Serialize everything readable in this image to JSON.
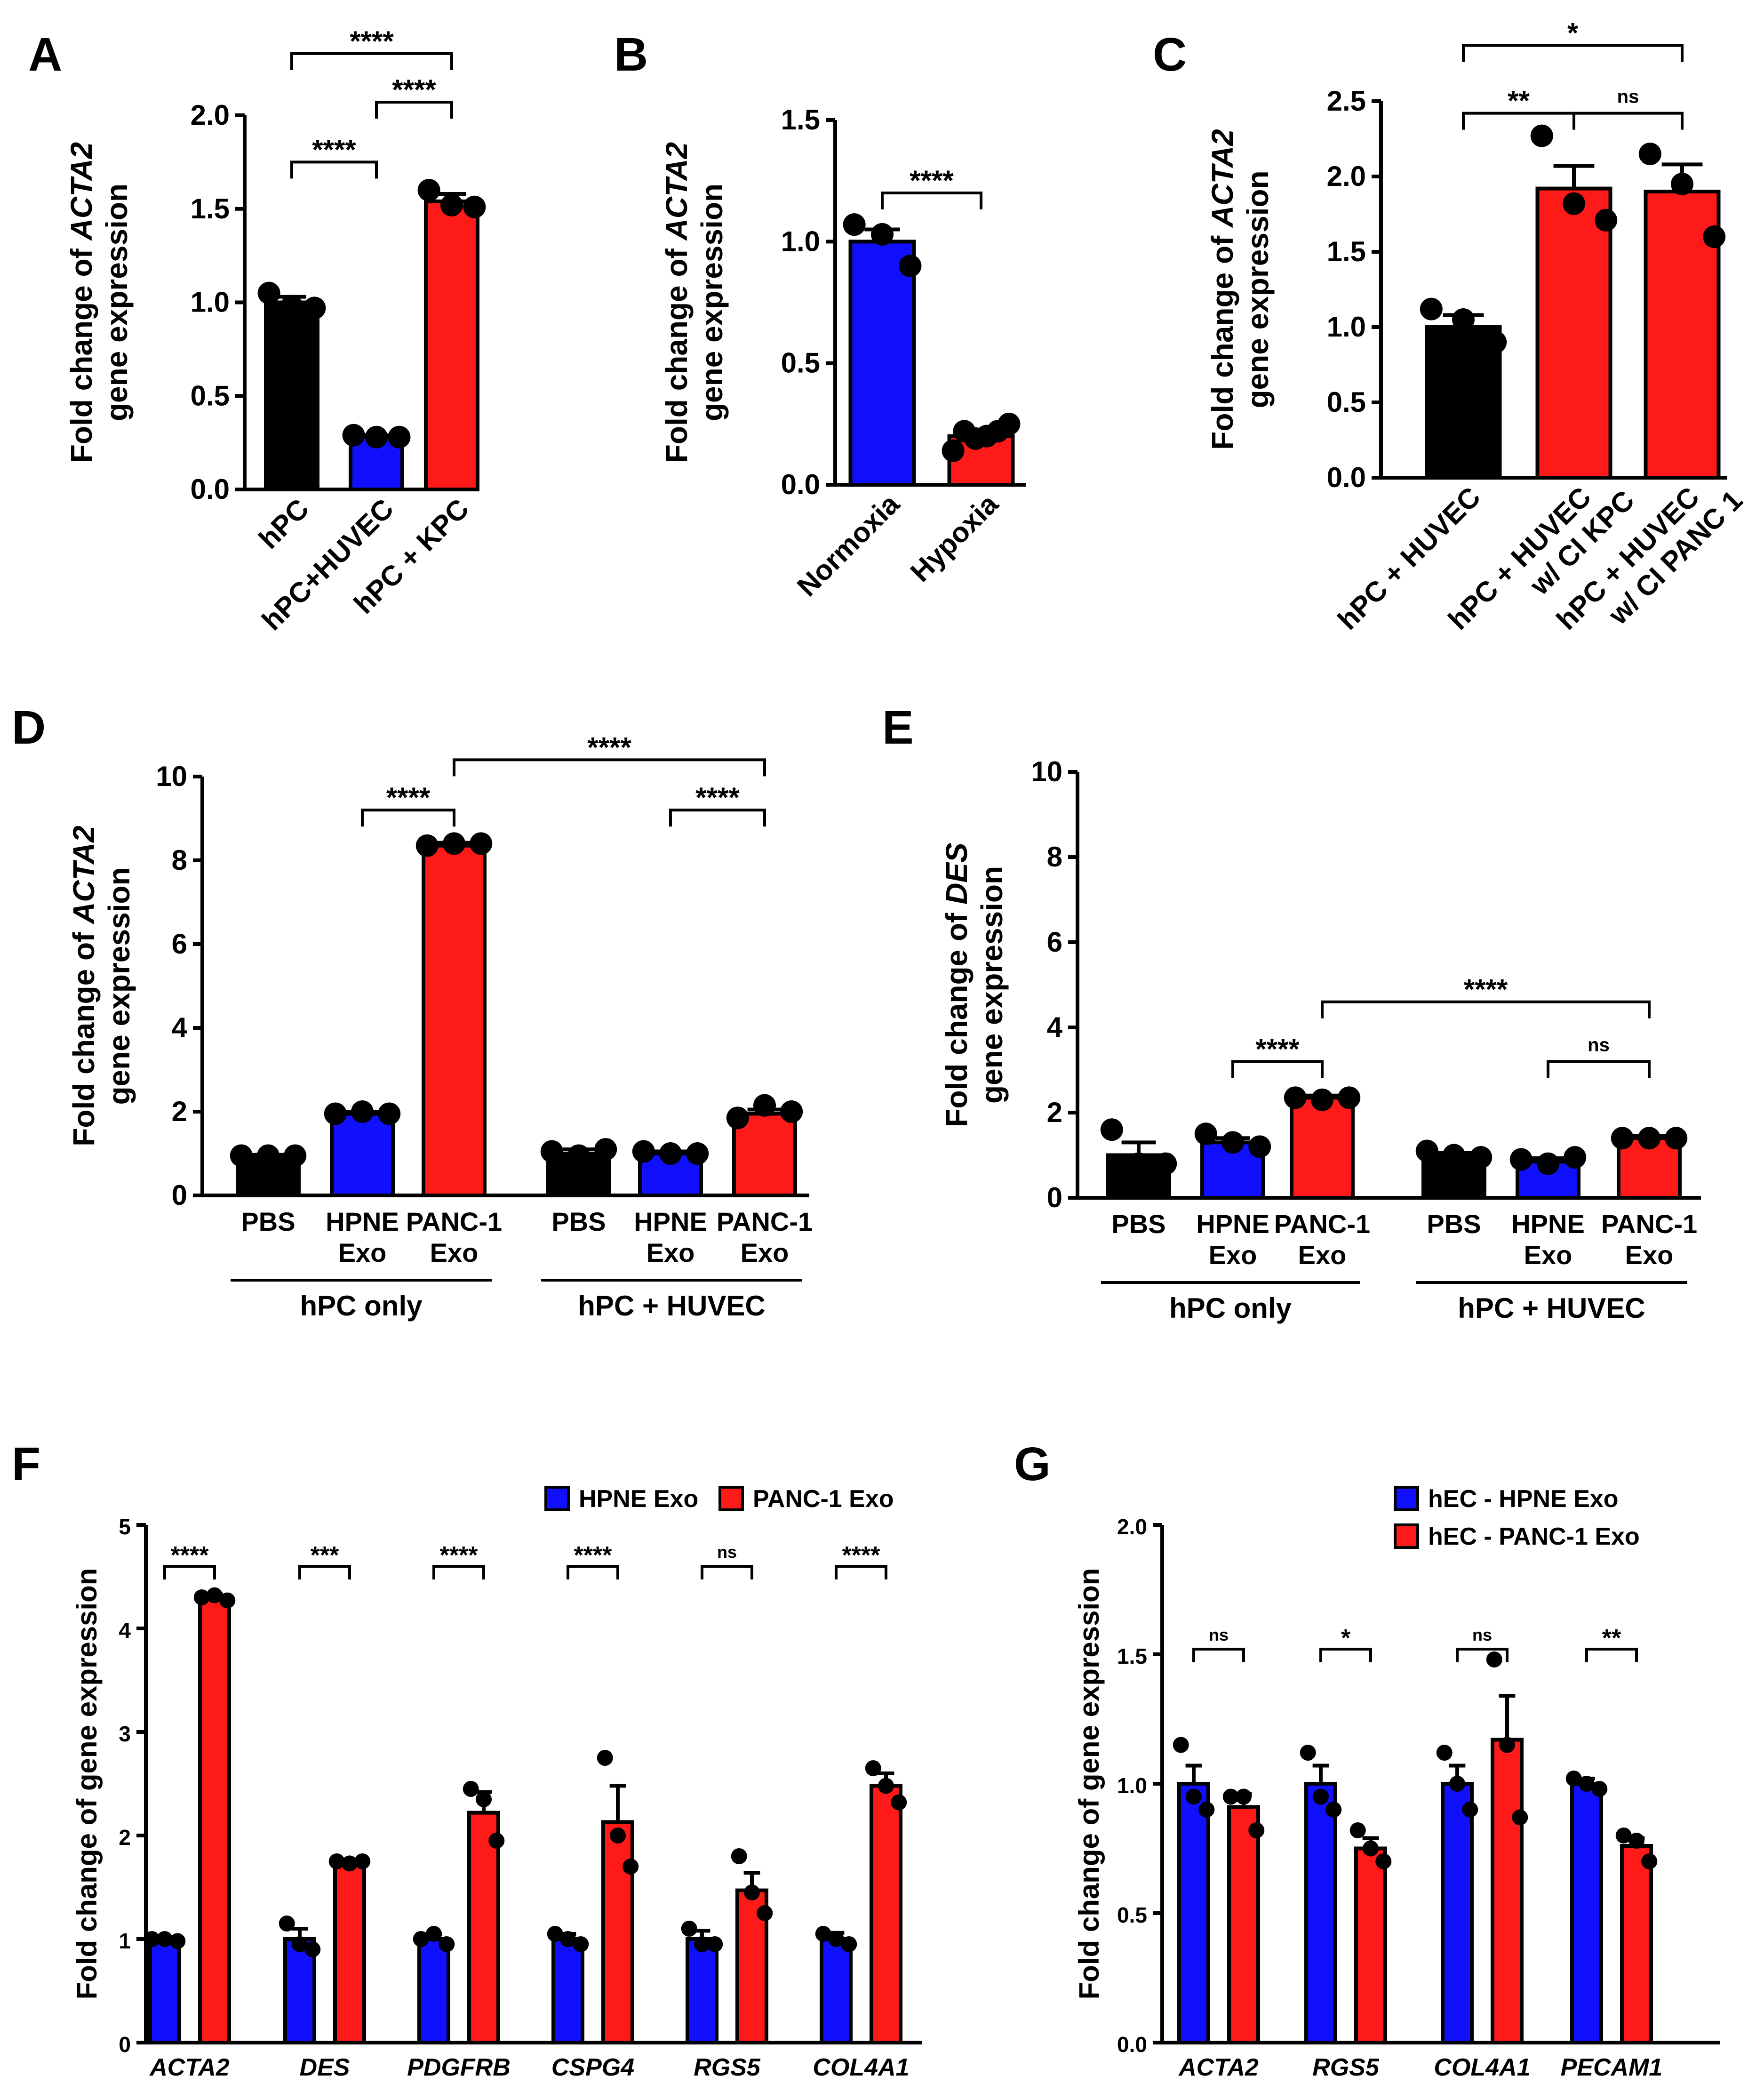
{
  "colors": {
    "black": "#000000",
    "blue": "#1010ff",
    "red": "#ff1a1a"
  },
  "chart_data": [
    {
      "id": "A",
      "panel_label": "A",
      "type": "bar",
      "ylabel_pre": "Fold change of ",
      "ylabel_gene": "ACTA2",
      "ylabel_line2": "gene expression",
      "yticks": [
        "0.0",
        "0.5",
        "1.0",
        "1.5",
        "2.0"
      ],
      "ylim": [
        0,
        2.0
      ],
      "categories": [
        "hPC",
        "hPC+HUVEC",
        "hPC + KPC"
      ],
      "values": [
        1.0,
        0.28,
        1.54
      ],
      "sem": [
        0.03,
        0.01,
        0.04
      ],
      "colors": [
        "black",
        "blue",
        "red"
      ],
      "points": [
        [
          1.05,
          0.98,
          0.97
        ],
        [
          0.29,
          0.28,
          0.28
        ],
        [
          1.6,
          1.52,
          1.51
        ]
      ],
      "brackets": [
        {
          "from": 0,
          "to": 1,
          "label": "****",
          "y": 1.75
        },
        {
          "from": 1,
          "to": 2,
          "label": "****",
          "y": 2.07
        },
        {
          "from": 0,
          "to": 2,
          "label": "****",
          "y": 2.33
        }
      ]
    },
    {
      "id": "B",
      "panel_label": "B",
      "type": "bar",
      "ylabel_pre": "Fold change  of ",
      "ylabel_gene": "ACTA2",
      "ylabel_line2": "gene expression",
      "yticks": [
        "0.0",
        "0.5",
        "1.0",
        "1.5"
      ],
      "ylim": [
        0,
        1.5
      ],
      "categories": [
        "Normoxia",
        "Hypoxia"
      ],
      "values": [
        1.0,
        0.2
      ],
      "sem": [
        0.05,
        0.02
      ],
      "colors": [
        "blue",
        "red"
      ],
      "points": [
        [
          1.07,
          1.03,
          0.9
        ],
        [
          0.14,
          0.22,
          0.19,
          0.2,
          0.22,
          0.25
        ]
      ],
      "brackets": [
        {
          "from": 0,
          "to": 1,
          "label": "****",
          "y": 1.2
        }
      ]
    },
    {
      "id": "C",
      "panel_label": "C",
      "type": "bar",
      "ylabel_pre": "Fold change  of ",
      "ylabel_gene": "ACTA2",
      "ylabel_line2": "gene expression",
      "yticks": [
        "0.0",
        "0.5",
        "1.0",
        "1.5",
        "2.0",
        "2.5"
      ],
      "ylim": [
        0,
        2.5
      ],
      "categories": [
        "hPC + HUVEC",
        "hPC + HUVEC\nw/ CI KPC",
        "hPC + HUVEC\nw/ CI PANC 1"
      ],
      "values": [
        1.0,
        1.92,
        1.9
      ],
      "sem": [
        0.08,
        0.15,
        0.18
      ],
      "colors": [
        "black",
        "red",
        "red"
      ],
      "points": [
        [
          1.12,
          1.05,
          0.9
        ],
        [
          2.27,
          1.82,
          1.71
        ],
        [
          2.15,
          1.95,
          1.6
        ]
      ],
      "brackets": [
        {
          "from": 0,
          "to": 1,
          "label": "**",
          "y": 2.42
        },
        {
          "from": 1,
          "to": 2,
          "label": "ns",
          "y": 2.42
        },
        {
          "from": 0,
          "to": 2,
          "label": "*",
          "y": 2.87
        }
      ]
    },
    {
      "id": "D",
      "panel_label": "D",
      "type": "bar",
      "ylabel_pre": "Fold change  of ",
      "ylabel_gene": "ACTA2",
      "ylabel_line2": "gene expression",
      "yticks": [
        "0",
        "2",
        "4",
        "6",
        "8",
        "10"
      ],
      "ylim": [
        0,
        10
      ],
      "categories": [
        "PBS",
        "HPNE\nExo",
        "PANC-1\nExo",
        "PBS",
        "HPNE\nExo",
        "PANC-1\nExo"
      ],
      "groups": [
        "hPC only",
        "hPC + HUVEC"
      ],
      "values": [
        0.95,
        1.95,
        8.35,
        1.0,
        1.0,
        1.95
      ],
      "sem": [
        0.02,
        0.05,
        0.07,
        0.1,
        0.05,
        0.1
      ],
      "colors": [
        "black",
        "blue",
        "red",
        "black",
        "blue",
        "red"
      ],
      "points": [
        [
          0.95,
          0.95,
          0.95
        ],
        [
          1.95,
          2.0,
          1.95
        ],
        [
          8.35,
          8.4,
          8.4
        ],
        [
          1.05,
          0.95,
          1.1
        ],
        [
          1.05,
          1.0,
          1.0
        ],
        [
          1.85,
          2.15,
          2.0
        ]
      ],
      "brackets": [
        {
          "from": 1,
          "to": 2,
          "label": "****",
          "y": 9.2
        },
        {
          "from": 4,
          "to": 5,
          "label": "****",
          "y": 9.2
        },
        {
          "from": 2,
          "to": 5,
          "label": "****",
          "y": 10.4
        }
      ]
    },
    {
      "id": "E",
      "panel_label": "E",
      "type": "bar",
      "ylabel_pre": "Fold change  of ",
      "ylabel_gene": "DES",
      "ylabel_line2": "gene expression",
      "yticks": [
        "0",
        "2",
        "4",
        "6",
        "8",
        "10"
      ],
      "ylim": [
        0,
        10
      ],
      "categories": [
        "PBS",
        "HPNE\nExo",
        "PANC-1\nExo",
        "PBS",
        "HPNE\nExo",
        "PANC-1\nExo"
      ],
      "groups": [
        "hPC only",
        "hPC + HUVEC"
      ],
      "values": [
        1.0,
        1.3,
        2.35,
        1.0,
        0.85,
        1.4
      ],
      "sem": [
        0.3,
        0.1,
        0.05,
        0.05,
        0.08,
        0.05
      ],
      "colors": [
        "black",
        "blue",
        "red",
        "black",
        "blue",
        "red"
      ],
      "points": [
        [
          1.6,
          0.8,
          0.8
        ],
        [
          1.5,
          1.3,
          1.2
        ],
        [
          2.35,
          2.3,
          2.35
        ],
        [
          1.1,
          1.0,
          0.95
        ],
        [
          0.9,
          0.8,
          0.95
        ],
        [
          1.4,
          1.4,
          1.4
        ]
      ],
      "brackets": [
        {
          "from": 1,
          "to": 2,
          "label": "****",
          "y": 3.2
        },
        {
          "from": 4,
          "to": 5,
          "label": "ns",
          "y": 3.2
        },
        {
          "from": 2,
          "to": 5,
          "label": "****",
          "y": 4.6
        }
      ]
    },
    {
      "id": "F",
      "panel_label": "F",
      "type": "bar",
      "ylabel_pre": "Fold change of gene expression",
      "ylabel_gene": "",
      "ylabel_line2": "",
      "yticks": [
        "0",
        "1",
        "2",
        "3",
        "4",
        "5"
      ],
      "ylim": [
        0,
        5
      ],
      "categories": [
        "ACTA2",
        "DES",
        "PDGFRB",
        "CSPG4",
        "RGS5",
        "COL4A1"
      ],
      "legend": [
        "HPNE Exo",
        "PANC-1 Exo"
      ],
      "series": [
        {
          "name": "HPNE Exo",
          "values": [
            1.0,
            1.0,
            1.0,
            1.0,
            1.0,
            1.0
          ],
          "sem": [
            0.02,
            0.1,
            0.05,
            0.05,
            0.08,
            0.06
          ],
          "points": [
            [
              1.0,
              1.0,
              0.98
            ],
            [
              1.15,
              0.95,
              0.9
            ],
            [
              1.0,
              1.05,
              0.95
            ],
            [
              1.05,
              1.0,
              0.95
            ],
            [
              1.1,
              0.95,
              0.95
            ],
            [
              1.05,
              1.0,
              0.95
            ]
          ]
        },
        {
          "name": "PANC-1 Exo",
          "values": [
            4.3,
            1.75,
            2.22,
            2.13,
            1.47,
            2.48
          ],
          "sem": [
            0.03,
            0.02,
            0.2,
            0.35,
            0.17,
            0.12
          ],
          "points": [
            [
              4.3,
              4.32,
              4.27
            ],
            [
              1.75,
              1.73,
              1.75
            ],
            [
              2.45,
              2.35,
              1.95
            ],
            [
              2.75,
              2.0,
              1.7
            ],
            [
              1.8,
              1.45,
              1.25
            ],
            [
              2.65,
              2.48,
              2.32
            ]
          ]
        }
      ],
      "brackets": [
        {
          "cat": 0,
          "label": "****",
          "y": 4.6
        },
        {
          "cat": 1,
          "label": "***",
          "y": 4.6
        },
        {
          "cat": 2,
          "label": "****",
          "y": 4.6
        },
        {
          "cat": 3,
          "label": "****",
          "y": 4.6
        },
        {
          "cat": 4,
          "label": "ns",
          "y": 4.6
        },
        {
          "cat": 5,
          "label": "****",
          "y": 4.6
        }
      ]
    },
    {
      "id": "G",
      "panel_label": "G",
      "type": "bar",
      "ylabel_pre": "Fold change of gene expression",
      "ylabel_gene": "",
      "ylabel_line2": "",
      "yticks": [
        "0.0",
        "0.5",
        "1.0",
        "1.5",
        "2.0"
      ],
      "ylim": [
        0,
        2.0
      ],
      "categories": [
        "ACTA2",
        "RGS5",
        "COL4A1",
        "PECAM1"
      ],
      "legend": [
        "hEC - HPNE Exo",
        "hEC - PANC-1 Exo"
      ],
      "series": [
        {
          "name": "hEC - HPNE Exo",
          "values": [
            1.0,
            1.0,
            1.0,
            1.0
          ],
          "sem": [
            0.07,
            0.07,
            0.07,
            0.02
          ],
          "points": [
            [
              1.15,
              0.95,
              0.9
            ],
            [
              1.12,
              0.95,
              0.9
            ],
            [
              1.12,
              1.0,
              0.9
            ],
            [
              1.02,
              1.0,
              0.98
            ]
          ]
        },
        {
          "name": "hEC - PANC-1 Exo",
          "values": [
            0.91,
            0.75,
            1.17,
            0.76
          ],
          "sem": [
            0.05,
            0.04,
            0.17,
            0.03
          ],
          "points": [
            [
              0.95,
              0.95,
              0.82
            ],
            [
              0.82,
              0.75,
              0.7
            ],
            [
              1.48,
              1.15,
              0.87
            ],
            [
              0.8,
              0.78,
              0.7
            ]
          ]
        }
      ],
      "brackets": [
        {
          "cat": 0,
          "label": "ns",
          "y": 1.52
        },
        {
          "cat": 1,
          "label": "*",
          "y": 1.52
        },
        {
          "cat": 2,
          "label": "ns",
          "y": 1.52
        },
        {
          "cat": 3,
          "label": "**",
          "y": 1.52
        }
      ]
    }
  ]
}
